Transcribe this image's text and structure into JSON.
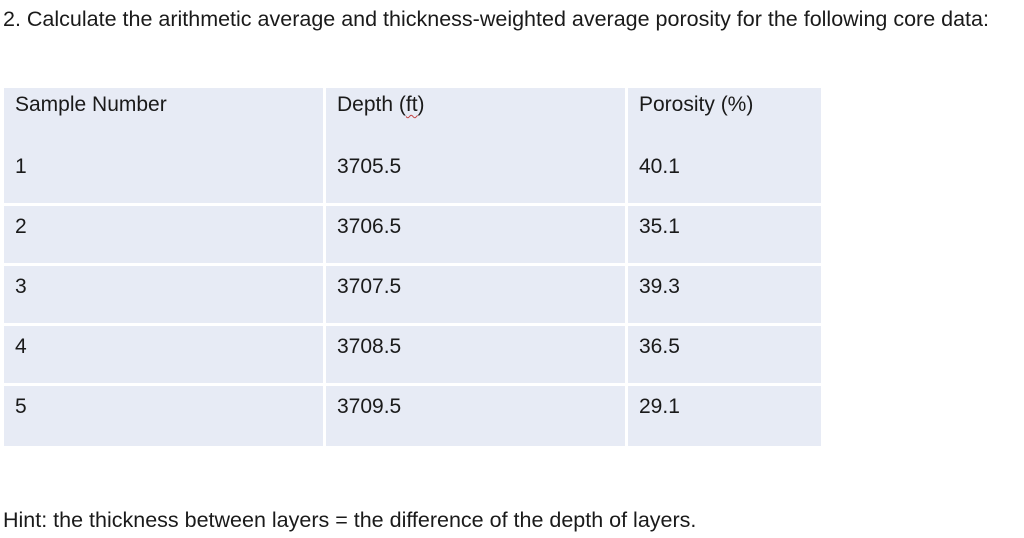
{
  "question": {
    "text": "2. Calculate the arithmetic average and thickness-weighted average porosity for the following core data:"
  },
  "table": {
    "headers": {
      "sample_number": "Sample Number",
      "depth_prefix": "Depth (",
      "depth_unit": "ft",
      "depth_suffix": ")",
      "porosity": "Porosity (%)"
    },
    "rows": [
      {
        "sample": "1",
        "depth": "3705.5",
        "porosity": "40.1"
      },
      {
        "sample": "2",
        "depth": "3706.5",
        "porosity": "35.1"
      },
      {
        "sample": "3",
        "depth": "3707.5",
        "porosity": "39.3"
      },
      {
        "sample": "4",
        "depth": "3708.5",
        "porosity": "36.5"
      },
      {
        "sample": "5",
        "depth": "3709.5",
        "porosity": "29.1"
      }
    ]
  },
  "hint": {
    "text": "Hint: the thickness between layers = the difference of the depth of layers."
  }
}
